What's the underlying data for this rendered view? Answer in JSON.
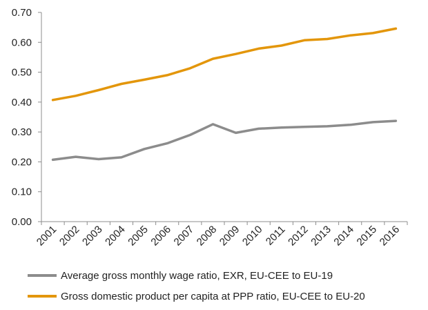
{
  "chart_data": {
    "type": "line",
    "categories": [
      "2001",
      "2002",
      "2003",
      "2004",
      "2005",
      "2006",
      "2007",
      "2008",
      "2009",
      "2010",
      "2011",
      "2012",
      "2013",
      "2014",
      "2015",
      "2016"
    ],
    "series": [
      {
        "name": "Average gross monthly wage ratio, EXR, EU-CEE to EU-19",
        "color": "#8c8c8c",
        "values": [
          0.207,
          0.217,
          0.209,
          0.215,
          0.243,
          0.262,
          0.29,
          0.326,
          0.297,
          0.311,
          0.315,
          0.317,
          0.319,
          0.324,
          0.333,
          0.337
        ]
      },
      {
        "name": "Gross domestic product per capita at PPP ratio, EU-CEE to EU-20",
        "color": "#e3960b",
        "values": [
          0.407,
          0.421,
          0.44,
          0.461,
          0.475,
          0.49,
          0.513,
          0.545,
          0.561,
          0.579,
          0.589,
          0.607,
          0.611,
          0.623,
          0.631,
          0.646
        ]
      }
    ],
    "yticks": [
      "0.00",
      "0.10",
      "0.20",
      "0.30",
      "0.40",
      "0.50",
      "0.60",
      "0.70"
    ],
    "ylim": [
      0,
      0.7
    ],
    "grid": false,
    "legend_position": "bottom"
  }
}
